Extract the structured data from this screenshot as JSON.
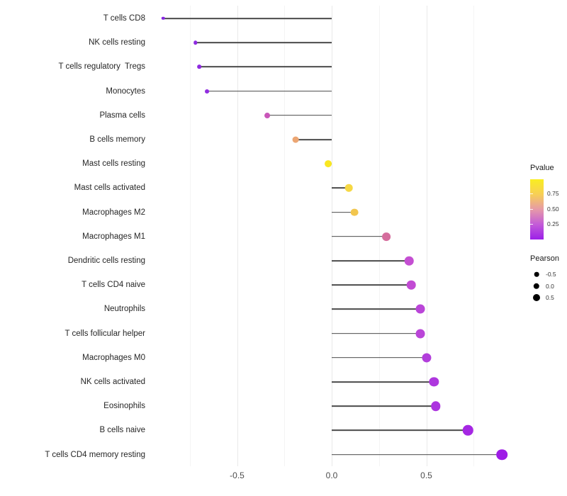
{
  "chart_data": {
    "type": "scatter",
    "variant": "horizontal-lollipop",
    "title": "",
    "xlabel": "",
    "ylabel": "",
    "xlim": [
      -0.92,
      1.0
    ],
    "grid": "on",
    "x_ticks": [
      {
        "value": -0.5,
        "label": "-0.5"
      },
      {
        "value": 0.0,
        "label": "0.0"
      },
      {
        "value": 0.5,
        "label": "0.5"
      }
    ],
    "minor_grid_values": [
      -0.75,
      -0.25,
      0.25,
      0.75
    ],
    "rows": [
      {
        "label": "T cells CD8",
        "pearson": -0.89,
        "color": "#8526e0"
      },
      {
        "label": "NK cells resting",
        "pearson": -0.72,
        "color": "#8e2ae0"
      },
      {
        "label": "T cells regulatory  Tregs",
        "pearson": -0.7,
        "color": "#8e2ae0"
      },
      {
        "label": "Monocytes",
        "pearson": -0.66,
        "color": "#912de0"
      },
      {
        "label": "Plasma cells",
        "pearson": -0.34,
        "color": "#c956b9"
      },
      {
        "label": "B cells memory",
        "pearson": -0.19,
        "color": "#eca673"
      },
      {
        "label": "Mast cells resting",
        "pearson": -0.02,
        "color": "#f9e721"
      },
      {
        "label": "Mast cells activated",
        "pearson": 0.09,
        "color": "#f6d844"
      },
      {
        "label": "Macrophages M2",
        "pearson": 0.12,
        "color": "#f2c64e"
      },
      {
        "label": "Macrophages M1",
        "pearson": 0.29,
        "color": "#d56d9d"
      },
      {
        "label": "Dendritic cells resting",
        "pearson": 0.41,
        "color": "#c44fd2"
      },
      {
        "label": "T cells CD4 naive",
        "pearson": 0.42,
        "color": "#c24bd4"
      },
      {
        "label": "Neutrophils",
        "pearson": 0.47,
        "color": "#ba45d8"
      },
      {
        "label": "T cells follicular helper",
        "pearson": 0.47,
        "color": "#ba45d8"
      },
      {
        "label": "Macrophages M0",
        "pearson": 0.5,
        "color": "#b23edb"
      },
      {
        "label": "NK cells activated",
        "pearson": 0.54,
        "color": "#ae37de"
      },
      {
        "label": "Eosinophils",
        "pearson": 0.55,
        "color": "#ac33df"
      },
      {
        "label": "B cells naive",
        "pearson": 0.72,
        "color": "#a527e3"
      },
      {
        "label": "T cells CD4 memory resting",
        "pearson": 0.9,
        "color": "#9e1ce6"
      }
    ]
  },
  "legend": {
    "pvalue": {
      "title": "Pvalue",
      "ticks": [
        {
          "label": "0.75",
          "frac_from_top": 0.235
        },
        {
          "label": "0.50",
          "frac_from_top": 0.494
        },
        {
          "label": "0.25",
          "frac_from_top": 0.74
        }
      ],
      "gradient_top_to_bottom": [
        "#f9ee21",
        "#f7cf56",
        "#e69aa8",
        "#c35bd8",
        "#9b1fe8"
      ]
    },
    "pearson": {
      "title": "Pearson",
      "entries": [
        {
          "label": "-0.5",
          "value": -0.5
        },
        {
          "label": "0.0",
          "value": 0.0
        },
        {
          "label": "0.5",
          "value": 0.5
        }
      ]
    }
  },
  "colors": {
    "stem": "#4a4a4a",
    "grid_major": "#e9e9e9",
    "grid_minor": "#f4f4f4",
    "axis_text": "#4d4d4d"
  }
}
